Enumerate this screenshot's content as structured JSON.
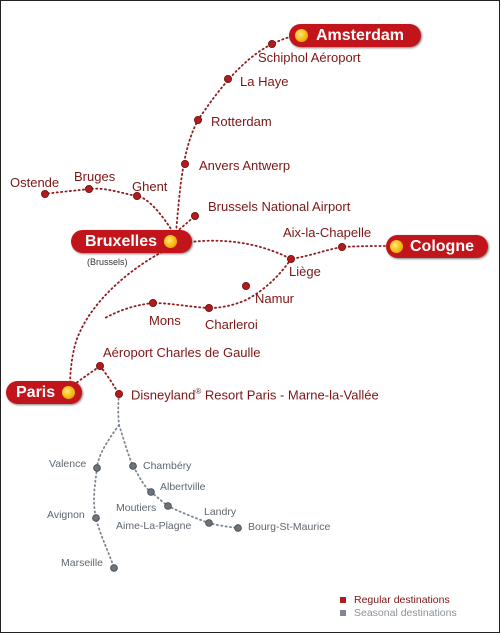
{
  "colors": {
    "regular": "#b01c1c",
    "seasonal": "#6b737b",
    "hub_fill": "#c2151b",
    "hub_text": "#ffffff",
    "sun": "#f6b80c"
  },
  "hubs": {
    "amsterdam": "Amsterdam",
    "bruxelles": "Bruxelles",
    "bruxelles_sub": "(Brussels)",
    "cologne": "Cologne",
    "paris": "Paris"
  },
  "stations": {
    "schiphol": "Schiphol Aéroport",
    "lahaye": "La Haye",
    "rotterdam": "Rotterdam",
    "anvers": "Anvers Antwerp",
    "brussels_airport": "Brussels National Airport",
    "ostende": "Ostende",
    "bruges": "Bruges",
    "ghent": "Ghent",
    "aix": "Aix-la-Chapelle",
    "liege": "Liège",
    "namur": "Namur",
    "mons": "Mons",
    "charleroi": "Charleroi",
    "cdg": "Aéroport Charles de Gaulle",
    "disney_a": "Disneyland",
    "disney_reg": "®",
    "disney_b": " Resort Paris - Marne-la-Vallée"
  },
  "seasonal": {
    "valence": "Valence",
    "avignon": "Avignon",
    "marseille": "Marseille",
    "chambery": "Chambéry",
    "albertville": "Albertville",
    "moutiers": "Moutiers",
    "aime": "Aime-La-Plagne",
    "landry": "Landry",
    "bourg": "Bourg-St-Maurice"
  },
  "legend": {
    "regular": "Regular destinations",
    "seasonal": "Seasonal destinations"
  },
  "icons": {
    "hub_marker": "sun-icon",
    "station_marker": "dot-icon",
    "legend_marker": "square-icon"
  }
}
